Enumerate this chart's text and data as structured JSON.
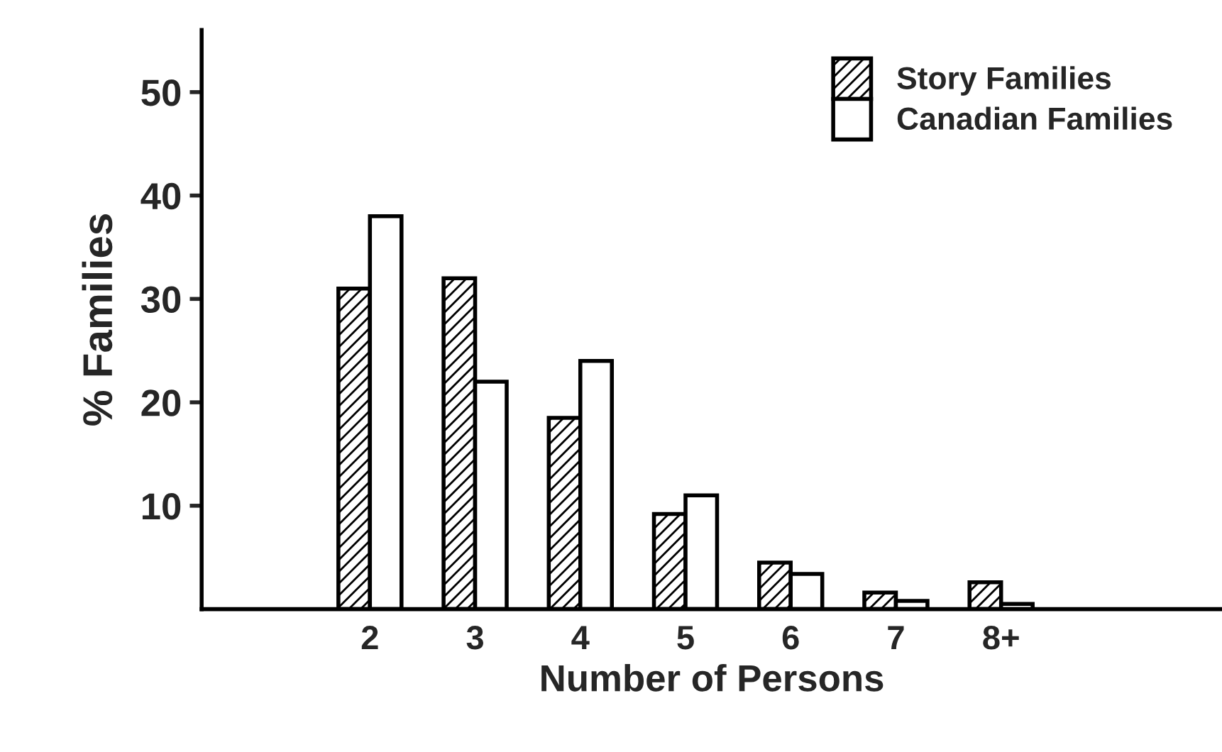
{
  "chart_data": {
    "type": "bar",
    "xlabel": "Number of Persons",
    "ylabel": "% Families",
    "categories": [
      "2",
      "3",
      "4",
      "5",
      "6",
      "7",
      "8+"
    ],
    "series": [
      {
        "name": "Story Families",
        "color": "#000000",
        "values": [
          31,
          32,
          18.5,
          9.2,
          4.5,
          1.6,
          2.6
        ]
      },
      {
        "name": "Canadian Families",
        "color": "#ffffff",
        "values": [
          38,
          22,
          24,
          11,
          3.4,
          0.8,
          0.5
        ]
      }
    ],
    "ylim": [
      0,
      56
    ],
    "yticks": [
      10,
      20,
      30,
      40,
      50
    ],
    "grid": false,
    "legend": "top right"
  }
}
